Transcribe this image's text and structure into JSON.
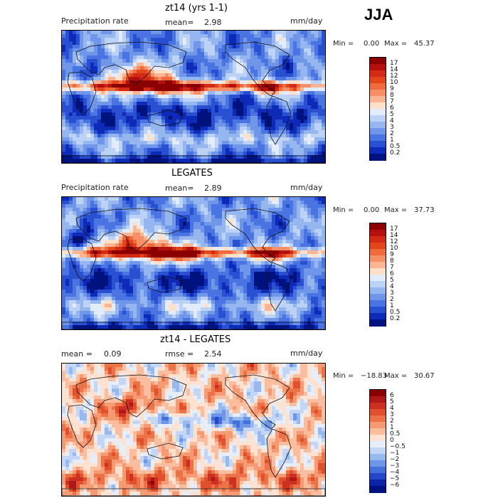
{
  "season": "JJA",
  "panels": [
    {
      "id": "model",
      "title": "zt14 (yrs 1-1)",
      "left_text": "Precipitation rate",
      "mean_label": "mean=",
      "mean_value": "2.98",
      "units": "mm/day",
      "min_label": "Min =",
      "min_value": "0.00",
      "max_label": "Max =",
      "max_value": "45.37",
      "colorbar": {
        "labels": [
          "17",
          "14",
          "12",
          "10",
          "9",
          "8",
          "7",
          "6",
          "5",
          "4",
          "3",
          "2",
          "1",
          "0.5",
          "0.2"
        ],
        "colors": [
          "#8b0000",
          "#b41010",
          "#d22a14",
          "#e4461c",
          "#ef6a3c",
          "#f58f66",
          "#f9b594",
          "#fde0c8",
          "#e2ecfa",
          "#bcd2f6",
          "#96b6f0",
          "#7096ea",
          "#4a74e2",
          "#2a50d2",
          "#0e2ab8",
          "#00127e"
        ]
      }
    },
    {
      "id": "obs",
      "title": "LEGATES",
      "left_text": "Precipitation rate",
      "mean_label": "mean=",
      "mean_value": "2.89",
      "units": "mm/day",
      "min_label": "Min =",
      "min_value": "0.00",
      "max_label": "Max =",
      "max_value": "37.73",
      "colorbar": {
        "labels": [
          "17",
          "14",
          "12",
          "10",
          "9",
          "8",
          "7",
          "6",
          "5",
          "4",
          "3",
          "2",
          "1",
          "0.5",
          "0.2"
        ],
        "colors": [
          "#8b0000",
          "#b41010",
          "#d22a14",
          "#e4461c",
          "#ef6a3c",
          "#f58f66",
          "#f9b594",
          "#fde0c8",
          "#e2ecfa",
          "#bcd2f6",
          "#96b6f0",
          "#7096ea",
          "#4a74e2",
          "#2a50d2",
          "#0e2ab8",
          "#00127e"
        ]
      }
    },
    {
      "id": "diff",
      "title": "zt14 - LEGATES",
      "mean_label": "mean =",
      "mean_value": "0.09",
      "rmse_label": "rmse =",
      "rmse_value": "2.54",
      "units": "mm/day",
      "min_label": "Min =",
      "min_value": "−18.83",
      "max_label": "Max =",
      "max_value": "30.67",
      "colorbar": {
        "labels": [
          "6",
          "5",
          "4",
          "3",
          "2",
          "1",
          "0.5",
          "0",
          "−0.5",
          "−1",
          "−2",
          "−3",
          "−4",
          "−5",
          "−6"
        ],
        "colors": [
          "#8b0000",
          "#b01818",
          "#cc3020",
          "#e0502c",
          "#ec7248",
          "#f59a72",
          "#f9bea0",
          "#fde2d2",
          "#e6eefa",
          "#c4d6f6",
          "#98b8f0",
          "#6e96e8",
          "#4470dc",
          "#2448c8",
          "#0c24a8",
          "#00127e"
        ]
      }
    }
  ]
}
